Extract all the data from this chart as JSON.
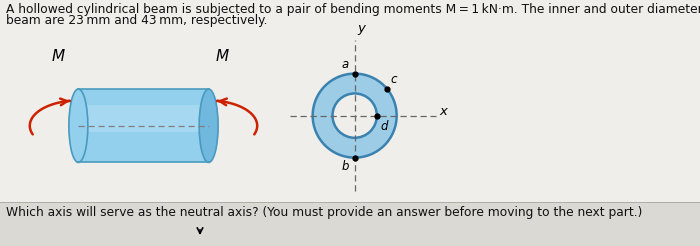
{
  "header_line1": "A hollowed cylindrical beam is subjected to a pair of bending moments M = 1 kN·m. The inner and outer diameters of the",
  "header_line2": "beam are 23 mm and 43 mm, respectively.",
  "question": "Which axis will serve as the neutral axis? (You must provide an answer before moving to the next part.)",
  "bg_main": "#f0eeea",
  "bg_bottom": "#dbd9d4",
  "cyl_light": "#92d0ed",
  "cyl_mid": "#70b8de",
  "cyl_dark": "#4a9abf",
  "cyl_highlight": "#b8e2f5",
  "ring_fill": "#9dcde6",
  "ring_edge": "#3a82b0",
  "arrow_red": "#cc2200",
  "inner_r": 0.38,
  "outer_r": 0.72,
  "font_header": 8.8,
  "font_question": 8.8
}
